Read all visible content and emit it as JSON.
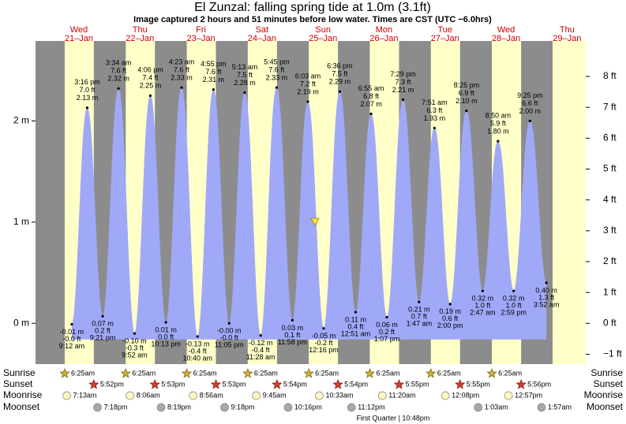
{
  "chart_data": {
    "type": "tide",
    "title": "El Zunzal: falling  spring tide at 1.0m (3.1ft)",
    "subtitle": "Image captured 2 hours and 51 minutes before low water. Times are CST (UTC −6.0hrs)",
    "days": [
      "Wed",
      "Thu",
      "Fri",
      "Sat",
      "Sun",
      "Mon",
      "Tue",
      "Wed",
      "Thu"
    ],
    "dates": [
      "21–Jan",
      "22–Jan",
      "23–Jan",
      "24–Jan",
      "25–Jan",
      "26–Jan",
      "27–Jan",
      "28–Jan",
      "29–Jan"
    ],
    "x": [
      "9:12 am",
      "3:16 pm",
      "9:21 pm",
      "3:34 am",
      "9:52 am",
      "4:06 pm",
      "10:13 pm",
      "4:23 am",
      "10:40 am",
      "4:55 pm",
      "11:05 pm",
      "5:13 am",
      "11:28 am",
      "5:45 pm",
      "11:58 pm",
      "6:03 am",
      "12:16 pm",
      "6:36 pm",
      "12:51 am",
      "6:55 am",
      "1:07 pm",
      "7:29 pm",
      "1:47 am",
      "7:51 am",
      "2:00 pm",
      "8:25 pm",
      "2:47 am",
      "8:50 am",
      "2:59 pm",
      "9:25 pm",
      "3:52 am"
    ],
    "values": [
      -0.01,
      2.13,
      0.07,
      2.32,
      -0.1,
      2.25,
      0.01,
      2.33,
      -0.13,
      2.31,
      -0.0,
      2.28,
      -0.12,
      2.33,
      0.03,
      2.19,
      -0.05,
      2.29,
      0.11,
      2.07,
      0.06,
      2.21,
      0.21,
      1.93,
      0.19,
      2.1,
      0.32,
      1.8,
      0.32,
      2.0,
      0.4
    ],
    "value_labels": [
      "-0.01 m",
      "2.13 m",
      "0.07 m",
      "2.32 m",
      "-0.10 m",
      "2.25 m",
      "0.01 m",
      "2.33 m",
      "-0.13 m",
      "2.31 m",
      "-0.00 m",
      "2.28 m",
      "-0.12 m",
      "2.33 m",
      "0.03 m",
      "2.19 m",
      "-0.05 m",
      "2.29 m",
      "0.11 m",
      "2.07 m",
      "0.06 m",
      "2.21 m",
      "0.21 m",
      "1.93 m",
      "0.19 m",
      "2.10 m",
      "0.32 m",
      "1.80 m",
      "0.32 m",
      "2.00 m",
      "0.40 m"
    ],
    "ft_labels": [
      "-0.0 ft",
      "7.0 ft",
      "0.2 ft",
      "7.6 ft",
      "-0.3 ft",
      "7.4 ft",
      "0.0 ft",
      "7.6 ft",
      "-0.4 ft",
      "7.6 ft",
      "-0.0 ft",
      "7.5 ft",
      "-0.4 ft",
      "7.6 ft",
      "0.1 ft",
      "7.2 ft",
      "-0.2 ft",
      "7.5 ft",
      "0.4 ft",
      "6.8 ft",
      "0.2 ft",
      "7.3 ft",
      "0.7 ft",
      "6.3 ft",
      "0.6 ft",
      "6.9 ft",
      "1.0 ft",
      "5.9 ft",
      "1.0 ft",
      "6.6 ft",
      "1.3 ft"
    ],
    "color": "#a0a8f8",
    "ylim": [
      -0.403,
      2.79
    ],
    "yticks": [
      {
        "value": 0,
        "label": "0 m"
      },
      {
        "value": 1,
        "label": "1 m"
      },
      {
        "value": 2,
        "label": "2 m"
      }
    ],
    "y2lim": [
      -1.32,
      9.15
    ],
    "y2ticks": [
      {
        "value": -1,
        "label": "−1 ft"
      },
      {
        "value": 0,
        "label": "0 ft"
      },
      {
        "value": 1,
        "label": "1 ft"
      },
      {
        "value": 2,
        "label": "2 ft"
      },
      {
        "value": 3,
        "label": "3 ft"
      },
      {
        "value": 4,
        "label": "4 ft"
      },
      {
        "value": 5,
        "label": "5 ft"
      },
      {
        "value": 6,
        "label": "6 ft"
      },
      {
        "value": 7,
        "label": "7 ft"
      },
      {
        "value": 8,
        "label": "8 ft"
      }
    ],
    "row_labels": [
      "Sunrise",
      "Sunset",
      "Moonrise",
      "Moonset"
    ],
    "sunrise": [
      "6:25am",
      "6:25am",
      "6:25am",
      "6:25am",
      "6:25am",
      "6:25am",
      "6:25am",
      "6:25am",
      null
    ],
    "sunset": [
      "5:52pm",
      "5:53pm",
      "5:53pm",
      "5:54pm",
      "5:54pm",
      "5:55pm",
      "5:55pm",
      "5:56pm",
      null
    ],
    "moonrise": [
      "7:13am",
      "8:06am",
      "8:56am",
      "9:45am",
      "10:33am",
      "11:20am",
      "12:08pm",
      "12:57pm",
      null
    ],
    "moonset": [
      "7:18pm",
      "8:19pm",
      "9:18pm",
      "10:16pm",
      "11:12pm",
      null,
      null,
      "1:03am",
      "1:57am"
    ],
    "moon_phase": "First Quarter | 10:48pm"
  }
}
